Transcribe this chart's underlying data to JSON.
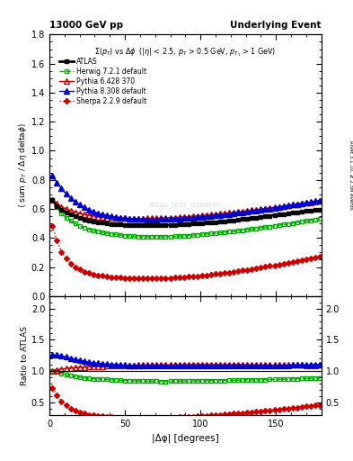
{
  "title_left": "13000 GeV pp",
  "title_right": "Underlying Event",
  "right_label": "Rivet 3.1.10, ≥ 2.3M events",
  "subplot_title": "Σ(p_T) vs Δφ  (|η| < 2.5, p_T > 0.5 GeV, p_{T1} > 1 GeV)",
  "xlabel": "|Δφ| [degrees]",
  "ylabel_main": "⟨ sum p_T / Δη deltaφ⟩",
  "ylabel_ratio": "Ratio to ATLAS",
  "watermark": "ATLAS_2017_I1509919",
  "ylim_main": [
    0.0,
    1.8
  ],
  "ylim_ratio": [
    0.3,
    2.2
  ],
  "xlim": [
    0,
    180
  ],
  "yticks_main": [
    0.0,
    0.2,
    0.4,
    0.6,
    0.8,
    1.0,
    1.2,
    1.4,
    1.6,
    1.8
  ],
  "yticks_ratio": [
    0.5,
    1.0,
    1.5,
    2.0
  ],
  "xticks": [
    0,
    50,
    100,
    150
  ],
  "series": [
    {
      "label": "ATLAS",
      "color": "#000000",
      "marker": "s",
      "markersize": 3,
      "linestyle": "-",
      "filled": true,
      "linewidth": 2.0,
      "x": [
        2,
        5,
        8,
        11,
        14,
        17,
        20,
        23,
        26,
        29,
        32,
        35,
        38,
        41,
        44,
        47,
        50,
        53,
        56,
        59,
        62,
        65,
        68,
        71,
        74,
        77,
        80,
        83,
        86,
        89,
        92,
        95,
        98,
        101,
        104,
        107,
        110,
        113,
        116,
        119,
        122,
        125,
        128,
        131,
        134,
        137,
        140,
        143,
        146,
        149,
        152,
        155,
        158,
        161,
        164,
        167,
        170,
        173,
        176,
        179
      ],
      "y": [
        0.66,
        0.62,
        0.595,
        0.575,
        0.56,
        0.548,
        0.536,
        0.527,
        0.52,
        0.514,
        0.508,
        0.504,
        0.5,
        0.497,
        0.494,
        0.492,
        0.49,
        0.489,
        0.488,
        0.487,
        0.487,
        0.487,
        0.487,
        0.487,
        0.488,
        0.489,
        0.49,
        0.491,
        0.492,
        0.494,
        0.496,
        0.498,
        0.5,
        0.502,
        0.504,
        0.507,
        0.51,
        0.513,
        0.516,
        0.519,
        0.522,
        0.525,
        0.529,
        0.533,
        0.537,
        0.541,
        0.545,
        0.549,
        0.553,
        0.557,
        0.561,
        0.565,
        0.569,
        0.573,
        0.577,
        0.581,
        0.585,
        0.588,
        0.592,
        0.595
      ]
    },
    {
      "label": "Herwig 7.2.1 default",
      "color": "#00aa00",
      "marker": "s",
      "markersize": 3,
      "linestyle": "--",
      "filled": false,
      "linewidth": 1.0,
      "x": [
        2,
        5,
        8,
        11,
        14,
        17,
        20,
        23,
        26,
        29,
        32,
        35,
        38,
        41,
        44,
        47,
        50,
        53,
        56,
        59,
        62,
        65,
        68,
        71,
        74,
        77,
        80,
        83,
        86,
        89,
        92,
        95,
        98,
        101,
        104,
        107,
        110,
        113,
        116,
        119,
        122,
        125,
        128,
        131,
        134,
        137,
        140,
        143,
        146,
        149,
        152,
        155,
        158,
        161,
        164,
        167,
        170,
        173,
        176,
        179
      ],
      "y": [
        0.665,
        0.61,
        0.57,
        0.54,
        0.518,
        0.5,
        0.484,
        0.471,
        0.46,
        0.451,
        0.444,
        0.438,
        0.433,
        0.428,
        0.424,
        0.42,
        0.417,
        0.414,
        0.412,
        0.41,
        0.409,
        0.408,
        0.408,
        0.408,
        0.408,
        0.409,
        0.41,
        0.411,
        0.413,
        0.415,
        0.417,
        0.419,
        0.422,
        0.424,
        0.427,
        0.43,
        0.433,
        0.436,
        0.439,
        0.443,
        0.446,
        0.45,
        0.454,
        0.458,
        0.462,
        0.466,
        0.47,
        0.475,
        0.479,
        0.483,
        0.488,
        0.492,
        0.497,
        0.502,
        0.507,
        0.512,
        0.517,
        0.521,
        0.525,
        0.53
      ]
    },
    {
      "label": "Pythia 6.428 370",
      "color": "#cc0000",
      "marker": "^",
      "markersize": 4,
      "linestyle": "-",
      "filled": false,
      "linewidth": 1.0,
      "x": [
        2,
        5,
        8,
        11,
        14,
        17,
        20,
        23,
        26,
        29,
        32,
        35,
        38,
        41,
        44,
        47,
        50,
        53,
        56,
        59,
        62,
        65,
        68,
        71,
        74,
        77,
        80,
        83,
        86,
        89,
        92,
        95,
        98,
        101,
        104,
        107,
        110,
        113,
        116,
        119,
        122,
        125,
        128,
        131,
        134,
        137,
        140,
        143,
        146,
        149,
        152,
        155,
        158,
        161,
        164,
        167,
        170,
        173,
        176,
        179
      ],
      "y": [
        0.665,
        0.635,
        0.615,
        0.6,
        0.588,
        0.578,
        0.569,
        0.562,
        0.556,
        0.551,
        0.547,
        0.544,
        0.541,
        0.539,
        0.537,
        0.536,
        0.535,
        0.534,
        0.534,
        0.534,
        0.534,
        0.535,
        0.535,
        0.536,
        0.537,
        0.538,
        0.54,
        0.541,
        0.543,
        0.545,
        0.547,
        0.549,
        0.552,
        0.554,
        0.557,
        0.56,
        0.563,
        0.566,
        0.569,
        0.573,
        0.576,
        0.58,
        0.583,
        0.587,
        0.591,
        0.595,
        0.599,
        0.603,
        0.607,
        0.611,
        0.615,
        0.62,
        0.624,
        0.628,
        0.633,
        0.637,
        0.641,
        0.645,
        0.649,
        0.653
      ]
    },
    {
      "label": "Pythia 8.308 default",
      "color": "#0000cc",
      "marker": "^",
      "markersize": 4,
      "linestyle": "-",
      "filled": true,
      "linewidth": 1.0,
      "x": [
        2,
        5,
        8,
        11,
        14,
        17,
        20,
        23,
        26,
        29,
        32,
        35,
        38,
        41,
        44,
        47,
        50,
        53,
        56,
        59,
        62,
        65,
        68,
        71,
        74,
        77,
        80,
        83,
        86,
        89,
        92,
        95,
        98,
        101,
        104,
        107,
        110,
        113,
        116,
        119,
        122,
        125,
        128,
        131,
        134,
        137,
        140,
        143,
        146,
        149,
        152,
        155,
        158,
        161,
        164,
        167,
        170,
        173,
        176,
        179
      ],
      "y": [
        0.83,
        0.78,
        0.74,
        0.706,
        0.676,
        0.65,
        0.628,
        0.61,
        0.595,
        0.582,
        0.572,
        0.563,
        0.556,
        0.55,
        0.545,
        0.541,
        0.537,
        0.534,
        0.532,
        0.53,
        0.529,
        0.528,
        0.528,
        0.528,
        0.529,
        0.529,
        0.53,
        0.532,
        0.533,
        0.535,
        0.537,
        0.54,
        0.542,
        0.545,
        0.548,
        0.551,
        0.554,
        0.558,
        0.561,
        0.565,
        0.569,
        0.573,
        0.577,
        0.581,
        0.585,
        0.59,
        0.594,
        0.599,
        0.603,
        0.608,
        0.613,
        0.618,
        0.623,
        0.628,
        0.633,
        0.638,
        0.643,
        0.648,
        0.653,
        0.658
      ]
    },
    {
      "label": "Sherpa 2.2.9 default",
      "color": "#cc0000",
      "marker": "D",
      "markersize": 3,
      "linestyle": ":",
      "filled": true,
      "linewidth": 1.0,
      "x": [
        2,
        5,
        8,
        11,
        14,
        17,
        20,
        23,
        26,
        29,
        32,
        35,
        38,
        41,
        44,
        47,
        50,
        53,
        56,
        59,
        62,
        65,
        68,
        71,
        74,
        77,
        80,
        83,
        86,
        89,
        92,
        95,
        98,
        101,
        104,
        107,
        110,
        113,
        116,
        119,
        122,
        125,
        128,
        131,
        134,
        137,
        140,
        143,
        146,
        149,
        152,
        155,
        158,
        161,
        164,
        167,
        170,
        173,
        176,
        179
      ],
      "y": [
        0.48,
        0.38,
        0.305,
        0.26,
        0.225,
        0.2,
        0.182,
        0.168,
        0.158,
        0.15,
        0.144,
        0.139,
        0.135,
        0.132,
        0.129,
        0.127,
        0.125,
        0.124,
        0.123,
        0.122,
        0.122,
        0.122,
        0.122,
        0.122,
        0.123,
        0.124,
        0.125,
        0.127,
        0.129,
        0.131,
        0.133,
        0.136,
        0.138,
        0.141,
        0.144,
        0.148,
        0.151,
        0.155,
        0.159,
        0.163,
        0.167,
        0.172,
        0.176,
        0.181,
        0.186,
        0.191,
        0.196,
        0.201,
        0.207,
        0.212,
        0.218,
        0.224,
        0.23,
        0.236,
        0.242,
        0.248,
        0.255,
        0.261,
        0.267,
        0.274
      ]
    }
  ],
  "ratio_series": [
    {
      "label": "Herwig 7.2.1 default",
      "color": "#00aa00",
      "marker": "s",
      "markersize": 3,
      "linestyle": "--",
      "filled": false,
      "linewidth": 1.0,
      "x": [
        2,
        5,
        8,
        11,
        14,
        17,
        20,
        23,
        26,
        29,
        32,
        35,
        38,
        41,
        44,
        47,
        50,
        53,
        56,
        59,
        62,
        65,
        68,
        71,
        74,
        77,
        80,
        83,
        86,
        89,
        92,
        95,
        98,
        101,
        104,
        107,
        110,
        113,
        116,
        119,
        122,
        125,
        128,
        131,
        134,
        137,
        140,
        143,
        146,
        149,
        152,
        155,
        158,
        161,
        164,
        167,
        170,
        173,
        176,
        179
      ],
      "y": [
        1.008,
        0.984,
        0.958,
        0.939,
        0.925,
        0.912,
        0.903,
        0.894,
        0.885,
        0.877,
        0.874,
        0.869,
        0.866,
        0.862,
        0.859,
        0.854,
        0.851,
        0.847,
        0.844,
        0.842,
        0.84,
        0.838,
        0.838,
        0.838,
        0.836,
        0.836,
        0.837,
        0.837,
        0.839,
        0.84,
        0.841,
        0.842,
        0.844,
        0.844,
        0.847,
        0.848,
        0.849,
        0.85,
        0.851,
        0.853,
        0.855,
        0.857,
        0.858,
        0.86,
        0.86,
        0.862,
        0.862,
        0.865,
        0.866,
        0.867,
        0.869,
        0.87,
        0.873,
        0.877,
        0.879,
        0.881,
        0.883,
        0.886,
        0.887,
        0.891
      ]
    },
    {
      "label": "Pythia 6.428 370",
      "color": "#cc0000",
      "marker": "^",
      "markersize": 4,
      "linestyle": "-",
      "filled": false,
      "linewidth": 1.0,
      "x": [
        2,
        5,
        8,
        11,
        14,
        17,
        20,
        23,
        26,
        29,
        32,
        35,
        38,
        41,
        44,
        47,
        50,
        53,
        56,
        59,
        62,
        65,
        68,
        71,
        74,
        77,
        80,
        83,
        86,
        89,
        92,
        95,
        98,
        101,
        104,
        107,
        110,
        113,
        116,
        119,
        122,
        125,
        128,
        131,
        134,
        137,
        140,
        143,
        146,
        149,
        152,
        155,
        158,
        161,
        164,
        167,
        170,
        173,
        176,
        179
      ],
      "y": [
        1.008,
        1.024,
        1.034,
        1.043,
        1.05,
        1.054,
        1.061,
        1.066,
        1.069,
        1.071,
        1.076,
        1.079,
        1.082,
        1.085,
        1.087,
        1.089,
        1.092,
        1.092,
        1.094,
        1.096,
        1.096,
        1.098,
        1.098,
        1.1,
        1.1,
        1.1,
        1.102,
        1.102,
        1.103,
        1.105,
        1.105,
        1.106,
        1.104,
        1.104,
        1.104,
        1.104,
        1.104,
        1.104,
        1.103,
        1.104,
        1.104,
        1.105,
        1.102,
        1.102,
        1.102,
        1.1,
        1.099,
        1.098,
        1.097,
        1.097,
        1.096,
        1.097,
        1.096,
        1.096,
        1.097,
        1.097,
        1.095,
        1.095,
        1.095,
        1.097
      ]
    },
    {
      "label": "Pythia 8.308 default",
      "color": "#0000cc",
      "marker": "^",
      "markersize": 4,
      "linestyle": "-",
      "filled": true,
      "linewidth": 1.0,
      "x": [
        2,
        5,
        8,
        11,
        14,
        17,
        20,
        23,
        26,
        29,
        32,
        35,
        38,
        41,
        44,
        47,
        50,
        53,
        56,
        59,
        62,
        65,
        68,
        71,
        74,
        77,
        80,
        83,
        86,
        89,
        92,
        95,
        98,
        101,
        104,
        107,
        110,
        113,
        116,
        119,
        122,
        125,
        128,
        131,
        134,
        137,
        140,
        143,
        146,
        149,
        152,
        155,
        158,
        161,
        164,
        167,
        170,
        173,
        176,
        179
      ],
      "y": [
        1.258,
        1.258,
        1.244,
        1.228,
        1.207,
        1.186,
        1.172,
        1.158,
        1.144,
        1.132,
        1.126,
        1.118,
        1.112,
        1.107,
        1.104,
        1.1,
        1.096,
        1.092,
        1.09,
        1.088,
        1.087,
        1.084,
        1.084,
        1.084,
        1.084,
        1.083,
        1.082,
        1.084,
        1.083,
        1.083,
        1.083,
        1.084,
        1.084,
        1.085,
        1.087,
        1.087,
        1.088,
        1.089,
        1.089,
        1.09,
        1.091,
        1.092,
        1.09,
        1.09,
        1.09,
        1.091,
        1.09,
        1.091,
        1.091,
        1.091,
        1.093,
        1.093,
        1.095,
        1.096,
        1.098,
        1.1,
        1.099,
        1.102,
        1.103,
        1.105
      ]
    },
    {
      "label": "Sherpa 2.2.9 default",
      "color": "#cc0000",
      "marker": "D",
      "markersize": 3,
      "linestyle": ":",
      "filled": true,
      "linewidth": 1.0,
      "x": [
        2,
        5,
        8,
        11,
        14,
        17,
        20,
        23,
        26,
        29,
        32,
        35,
        38,
        41,
        44,
        47,
        50,
        53,
        56,
        59,
        62,
        65,
        68,
        71,
        74,
        77,
        80,
        83,
        86,
        89,
        92,
        95,
        98,
        101,
        104,
        107,
        110,
        113,
        116,
        119,
        122,
        125,
        128,
        131,
        134,
        137,
        140,
        143,
        146,
        149,
        152,
        155,
        158,
        161,
        164,
        167,
        170,
        173,
        176,
        179
      ],
      "y": [
        0.727,
        0.613,
        0.513,
        0.452,
        0.402,
        0.365,
        0.34,
        0.319,
        0.304,
        0.292,
        0.283,
        0.276,
        0.27,
        0.266,
        0.261,
        0.259,
        0.255,
        0.254,
        0.252,
        0.251,
        0.251,
        0.25,
        0.25,
        0.25,
        0.252,
        0.254,
        0.255,
        0.259,
        0.262,
        0.265,
        0.268,
        0.273,
        0.276,
        0.281,
        0.286,
        0.292,
        0.296,
        0.302,
        0.308,
        0.314,
        0.32,
        0.328,
        0.333,
        0.34,
        0.346,
        0.353,
        0.36,
        0.366,
        0.374,
        0.381,
        0.388,
        0.397,
        0.404,
        0.412,
        0.419,
        0.427,
        0.436,
        0.444,
        0.451,
        0.46
      ]
    }
  ]
}
